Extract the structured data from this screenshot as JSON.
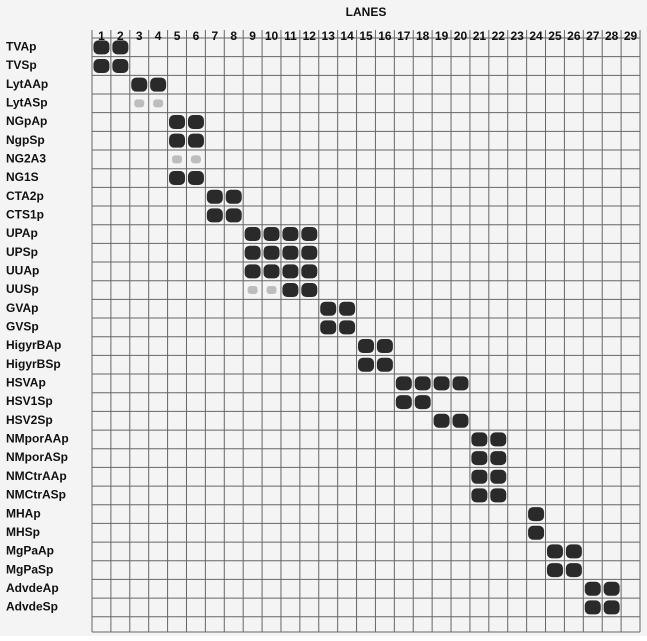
{
  "title": "LANES",
  "lanes": [
    "1",
    "2",
    "3",
    "4",
    "5",
    "6",
    "7",
    "8",
    "9",
    "10",
    "11",
    "12",
    "13",
    "14",
    "15",
    "16",
    "17",
    "18",
    "19",
    "20",
    "21",
    "22",
    "23",
    "24",
    "25",
    "26",
    "27",
    "28",
    "29"
  ],
  "rows": [
    {
      "label": "TVAp",
      "spots": [
        1,
        2
      ],
      "weak": []
    },
    {
      "label": "TVSp",
      "spots": [
        1,
        2
      ],
      "weak": []
    },
    {
      "label": "LytAAp",
      "spots": [
        3,
        4
      ],
      "weak": []
    },
    {
      "label": "LytASp",
      "spots": [],
      "weak": [
        3,
        4
      ]
    },
    {
      "label": "NGpAp",
      "spots": [
        5,
        6
      ],
      "weak": []
    },
    {
      "label": "NgpSp",
      "spots": [
        5,
        6
      ],
      "weak": []
    },
    {
      "label": "NG2A3",
      "spots": [],
      "weak": [
        5,
        6
      ]
    },
    {
      "label": "NG1S",
      "spots": [
        5,
        6
      ],
      "weak": []
    },
    {
      "label": "CTA2p",
      "spots": [
        7,
        8
      ],
      "weak": []
    },
    {
      "label": "CTS1p",
      "spots": [
        7,
        8
      ],
      "weak": []
    },
    {
      "label": "UPAp",
      "spots": [
        9,
        10,
        11,
        12
      ],
      "weak": []
    },
    {
      "label": "UPSp",
      "spots": [
        9,
        10,
        11,
        12
      ],
      "weak": []
    },
    {
      "label": "UUAp",
      "spots": [
        9,
        10,
        11,
        12
      ],
      "weak": []
    },
    {
      "label": "UUSp",
      "spots": [
        11,
        12
      ],
      "weak": [
        9,
        10
      ]
    },
    {
      "label": "GVAp",
      "spots": [
        13,
        14
      ],
      "weak": []
    },
    {
      "label": "GVSp",
      "spots": [
        13,
        14
      ],
      "weak": []
    },
    {
      "label": "HigyrBAp",
      "spots": [
        15,
        16
      ],
      "weak": []
    },
    {
      "label": "HigyrBSp",
      "spots": [
        15,
        16
      ],
      "weak": []
    },
    {
      "label": "HSVAp",
      "spots": [
        17,
        18,
        19,
        20
      ],
      "weak": []
    },
    {
      "label": "HSV1Sp",
      "spots": [
        17,
        18
      ],
      "weak": []
    },
    {
      "label": "HSV2Sp",
      "spots": [
        19,
        20
      ],
      "weak": []
    },
    {
      "label": "NMporAAp",
      "spots": [
        21,
        22
      ],
      "weak": []
    },
    {
      "label": "NMporASp",
      "spots": [
        21,
        22
      ],
      "weak": []
    },
    {
      "label": "NMCtrAAp",
      "spots": [
        21,
        22
      ],
      "weak": []
    },
    {
      "label": "NMCtrASp",
      "spots": [
        21,
        22
      ],
      "weak": []
    },
    {
      "label": "MHAp",
      "spots": [
        24
      ],
      "weak": []
    },
    {
      "label": "MHSp",
      "spots": [
        24
      ],
      "weak": []
    },
    {
      "label": "MgPaAp",
      "spots": [
        25,
        26
      ],
      "weak": []
    },
    {
      "label": "MgPaSp",
      "spots": [
        25,
        26
      ],
      "weak": []
    },
    {
      "label": "AdvdeAp",
      "spots": [
        27,
        28
      ],
      "weak": []
    },
    {
      "label": "AdvdeSp",
      "spots": [
        27,
        28
      ],
      "weak": []
    }
  ]
}
